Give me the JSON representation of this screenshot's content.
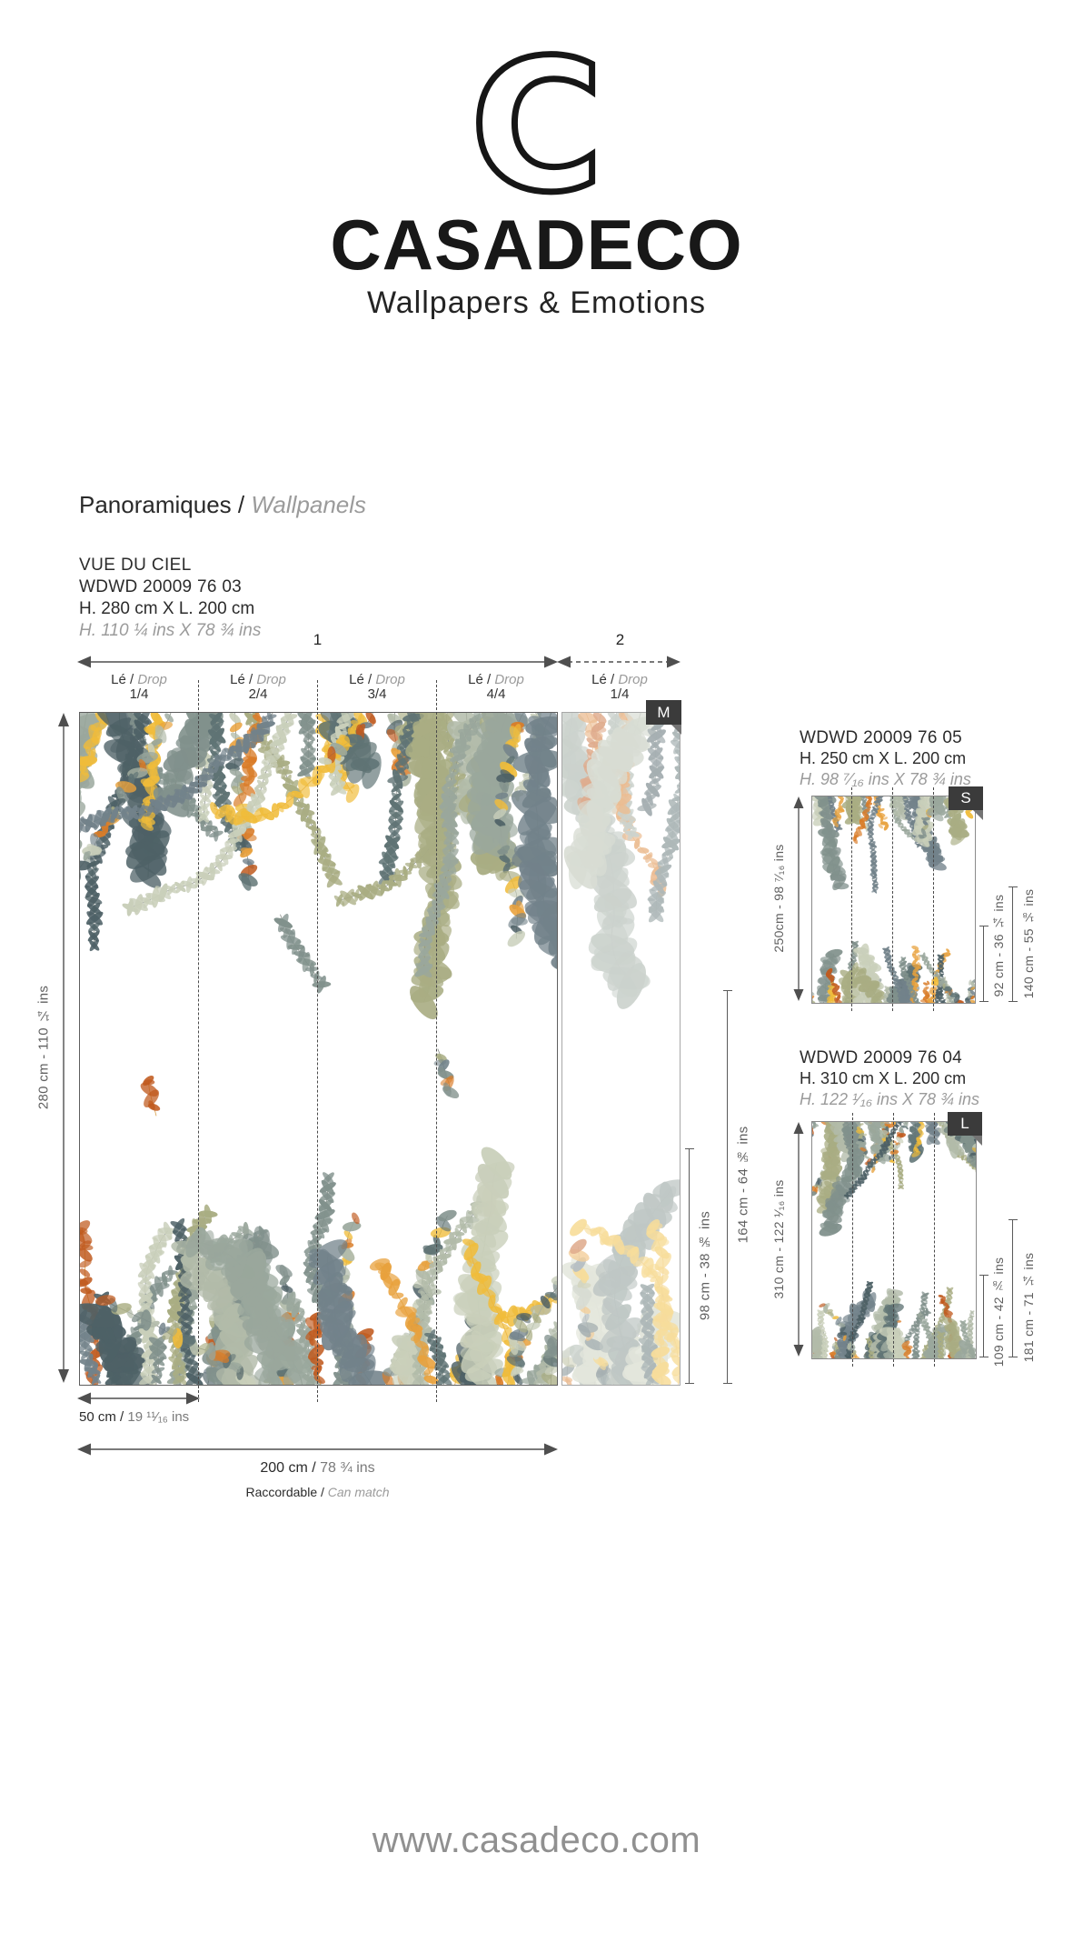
{
  "brand": {
    "logo_letter": "C",
    "name": "CASADECO",
    "tagline": "Wallpapers & Emotions"
  },
  "section": {
    "title_fr": "Panoramiques /",
    "title_en": "Wallpanels"
  },
  "footer": {
    "website": "www.casadeco.com"
  },
  "main_product": {
    "name": "VUE DU CIEL",
    "reference": "WDWD 20009 76 03",
    "size_cm": "H. 280 cm X L. 200 cm",
    "size_ins": "H. 110 ¼ ins X 78 ¾ ins",
    "size_badge": "M",
    "panel_numbers": {
      "first": "1",
      "second": "2"
    },
    "drops": [
      {
        "fr": "Lé /",
        "en": "Drop",
        "fraction": "1/4"
      },
      {
        "fr": "Lé /",
        "en": "Drop",
        "fraction": "2/4"
      },
      {
        "fr": "Lé /",
        "en": "Drop",
        "fraction": "3/4"
      },
      {
        "fr": "Lé /",
        "en": "Drop",
        "fraction": "4/4"
      },
      {
        "fr": "Lé /",
        "en": "Drop",
        "fraction": "1/4"
      }
    ],
    "height_label": "280 cm - 110 ¼ ins",
    "drop_width": {
      "cm": "50 cm /",
      "ins": "19 ¹¹⁄₁₆ ins"
    },
    "total_width": {
      "cm": "200 cm /",
      "ins": "78 ¾ ins"
    },
    "inner_height_1": "98 cm - 38 ⅝ ins",
    "inner_height_2": "164 cm - 64 ⅝ ins",
    "match": {
      "fr": "Raccordable /",
      "en": "Can match"
    }
  },
  "variants": [
    {
      "reference": "WDWD 20009 76 05",
      "size_cm": "H. 250 cm X L. 200 cm",
      "size_ins": "H. 98 ⁷⁄₁₆ ins X 78 ¾ ins",
      "size_badge": "S",
      "height_label": "250cm - 98 ⁷⁄₁₆ ins",
      "inner_height_1": "92 cm - 36 ¼ ins",
      "inner_height_2": "140 cm - 55 ⅛ ins"
    },
    {
      "reference": "WDWD 20009 76 04",
      "size_cm": "H. 310 cm X L. 200 cm",
      "size_ins": "H. 122 ¹⁄₁₆ ins X 78 ¾ ins",
      "size_badge": "L",
      "height_label": "310 cm - 122 ¹⁄₁₆ ins",
      "inner_height_1": "109 cm - 42 ⅞ ins",
      "inner_height_2": "181 cm - 71 ¼ ins"
    }
  ],
  "artwork": {
    "greens": [
      "#b2bba9",
      "#9aa79c",
      "#81918c",
      "#5f7374",
      "#a9ad83",
      "#c9cfba",
      "#72828a",
      "#4e6166"
    ],
    "accents": [
      "#e8a13c",
      "#f0bc3a",
      "#d97c28",
      "#c05a1e"
    ],
    "stem": "#8b918a",
    "stem_accent": "#d9a049",
    "background": "#ffffff"
  }
}
